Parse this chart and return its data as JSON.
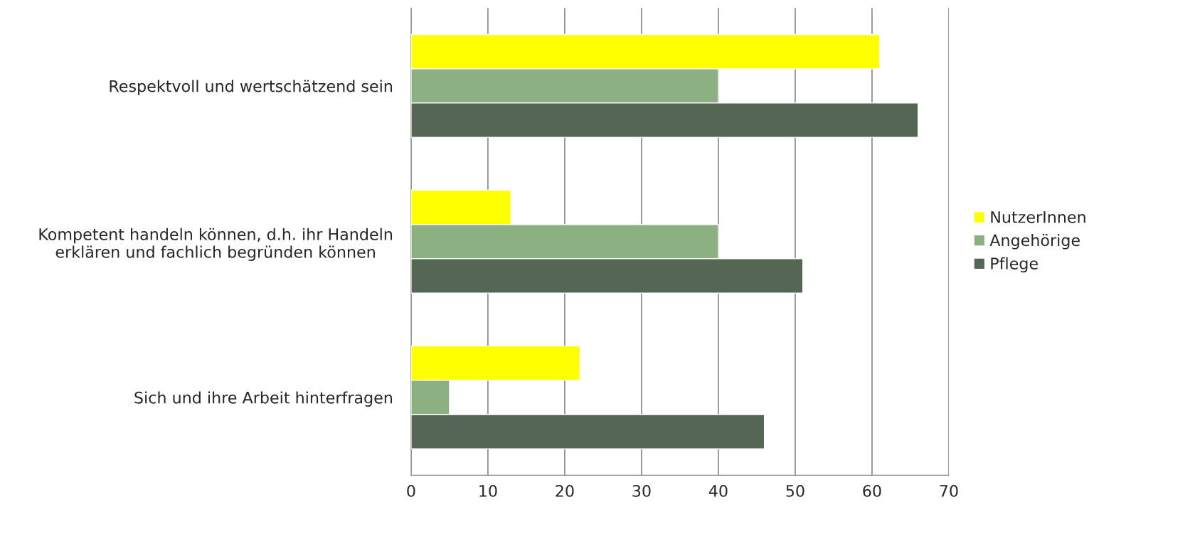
{
  "chart_data": {
    "type": "bar",
    "orientation": "horizontal",
    "categories": [
      "Respektvoll und wertschätzend sein",
      "Kompetent handeln können, d.h. ihr Handeln\nerklären und fachlich begründen können",
      "Sich und ihre Arbeit hinterfragen"
    ],
    "series": [
      {
        "name": "NutzerInnen",
        "color": "#ffff00",
        "values": [
          61,
          13,
          22
        ]
      },
      {
        "name": "Angehörige",
        "color": "#8db082",
        "values": [
          40,
          40,
          5
        ]
      },
      {
        "name": "Pflege",
        "color": "#556655",
        "values": [
          66,
          51,
          46
        ]
      }
    ],
    "xlim": [
      0,
      70
    ],
    "xticks": [
      0,
      10,
      20,
      30,
      40,
      50,
      60,
      70
    ],
    "grid": "x",
    "legend": "right"
  }
}
